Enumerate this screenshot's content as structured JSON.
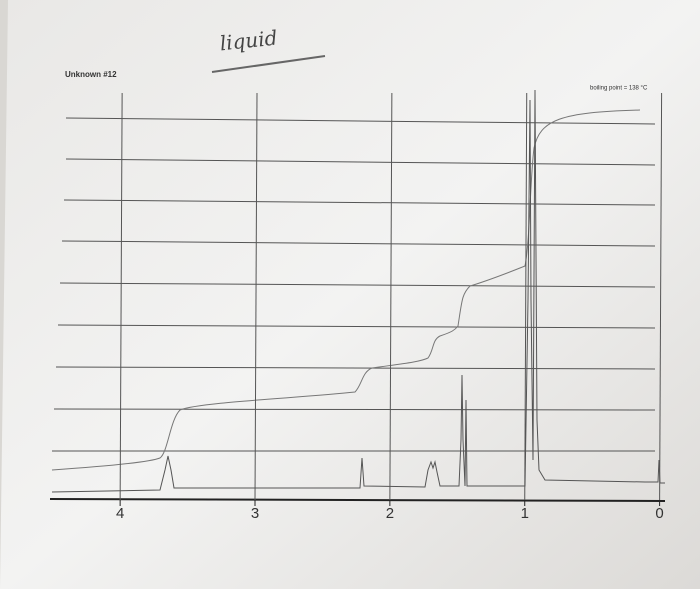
{
  "note_text": "liquid",
  "chart_data": {
    "type": "nmr",
    "title": "Unknown #12",
    "annotation": "boiling point = 138 °C",
    "xlim": [
      4.52,
      -0.04
    ],
    "xticks": [
      4,
      3,
      2,
      1,
      0
    ],
    "grid": true
  }
}
